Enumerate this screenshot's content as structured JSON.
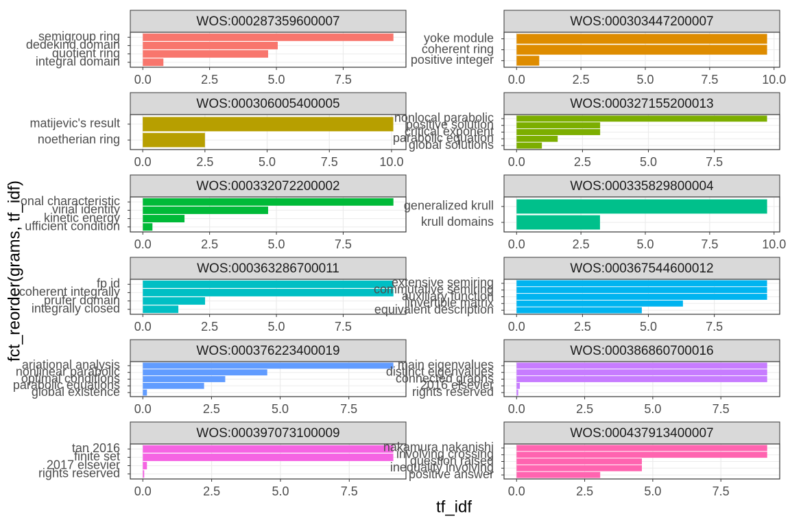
{
  "chart_data": [
    {
      "type": "bar",
      "title": "WOS:000287359600007",
      "categories": [
        "semigroup ring",
        "dedekind domain",
        "quotient ring",
        "integral domain"
      ],
      "values": [
        9.38,
        5.05,
        4.69,
        0.77
      ],
      "color": "#F8766D",
      "xlim": [
        -0.469,
        9.85
      ],
      "xticks": [
        {
          "value": 0,
          "label": "0.0"
        },
        2.5,
        {
          "value": 5,
          "label": "5.0"
        },
        7.5
      ]
    },
    {
      "type": "bar",
      "title": "WOS:000303447200007",
      "categories": [
        "yoke module",
        "coherent ring",
        "positive integer"
      ],
      "values": [
        9.73,
        9.73,
        0.88
      ],
      "color": "#DE8C00",
      "xlim": [
        -0.487,
        10.22
      ],
      "xticks": [
        {
          "value": 0,
          "label": "0.0"
        },
        2.5,
        {
          "value": 5,
          "label": "5.0"
        },
        7.5,
        {
          "value": 10,
          "label": "10.0"
        }
      ]
    },
    {
      "type": "bar",
      "title": "WOS:000306005400005",
      "categories": [
        "matijevic's result",
        "noetherian ring"
      ],
      "values": [
        10.07,
        2.5
      ],
      "color": "#B79F00",
      "xlim": [
        -0.5,
        10.58
      ],
      "xticks": [
        {
          "value": 0,
          "label": "0.0"
        },
        2.5,
        {
          "value": 5,
          "label": "5.0"
        },
        7.5,
        {
          "value": 10,
          "label": "10.0"
        }
      ]
    },
    {
      "type": "bar",
      "title": "WOS:000327155200013",
      "categories": [
        "nonlocal parabolic",
        "positive solution",
        "critical exponent",
        "parabolic equation",
        "global solutions"
      ],
      "values": [
        9.5,
        3.17,
        3.17,
        1.56,
        0.96
      ],
      "color": "#7CAE00",
      "xlim": [
        -0.475,
        9.98
      ],
      "xticks": [
        {
          "value": 0,
          "label": "0.0"
        },
        2.5,
        {
          "value": 5,
          "label": "5.0"
        },
        7.5
      ]
    },
    {
      "type": "bar",
      "title": "WOS:000332072200002",
      "categories": [
        "onal characteristic",
        "virial identity",
        "kinetic energy",
        "ufficient condition"
      ],
      "values": [
        9.38,
        4.69,
        1.56,
        0.36
      ],
      "color": "#00BA38",
      "xlim": [
        -0.469,
        9.85
      ],
      "xticks": [
        {
          "value": 0,
          "label": "0.0"
        },
        2.5,
        {
          "value": 5,
          "label": "5.0"
        },
        7.5
      ]
    },
    {
      "type": "bar",
      "title": "WOS:000335829800004",
      "categories": [
        "generalized krull",
        "krull domains"
      ],
      "values": [
        9.73,
        3.24
      ],
      "color": "#00C08B",
      "xlim": [
        -0.487,
        10.22
      ],
      "xticks": [
        {
          "value": 0,
          "label": "0.0"
        },
        2.5,
        {
          "value": 5,
          "label": "5.0"
        },
        7.5,
        {
          "value": 10,
          "label": "10.0"
        }
      ]
    },
    {
      "type": "bar",
      "title": "WOS:000363286700011",
      "categories": [
        "fp id",
        "coherent integrally",
        "prufer domain",
        "integrally closed"
      ],
      "values": [
        9.38,
        9.38,
        2.33,
        1.33
      ],
      "color": "#00BFC4",
      "xlim": [
        -0.469,
        9.85
      ],
      "xticks": [
        {
          "value": 0,
          "label": "0.0"
        },
        2.5,
        {
          "value": 5,
          "label": "5.0"
        },
        7.5
      ]
    },
    {
      "type": "bar",
      "title": "WOS:000367544600012",
      "categories": [
        "extensive semiring",
        "commutative semiring",
        "auxiliary function",
        "invertible matrix",
        "equivalent description"
      ],
      "values": [
        9.5,
        9.5,
        9.5,
        6.31,
        4.75
      ],
      "color": "#00B4F0",
      "xlim": [
        -0.475,
        9.98
      ],
      "xticks": [
        {
          "value": 0,
          "label": "0.0"
        },
        2.5,
        {
          "value": 5,
          "label": "5.0"
        },
        7.5
      ]
    },
    {
      "type": "bar",
      "title": "WOS:000376223400019",
      "categories": [
        "ariational analysis",
        "nonlinear parabolic",
        "optimal conditions",
        "parabolic equations",
        "global existence"
      ],
      "values": [
        9.12,
        4.53,
        3.0,
        2.23,
        0.15
      ],
      "color": "#619CFF",
      "xlim": [
        -0.456,
        9.58
      ],
      "xticks": [
        {
          "value": 0,
          "label": "0.0"
        },
        2.5,
        {
          "value": 5,
          "label": "5.0"
        },
        7.5
      ]
    },
    {
      "type": "bar",
      "title": "WOS:000386860700016",
      "categories": [
        "main eigenvalues",
        "distinct eigenvalues",
        "connected graphs",
        "2016 elsevier",
        "rights reserved"
      ],
      "values": [
        9.2,
        9.2,
        9.2,
        0.12,
        0.06
      ],
      "color": "#C77CFF",
      "xlim": [
        -0.46,
        9.66
      ],
      "xticks": [
        {
          "value": 0,
          "label": "0.0"
        },
        2.5,
        {
          "value": 5,
          "label": "5.0"
        },
        7.5
      ]
    },
    {
      "type": "bar",
      "title": "WOS:000397073100009",
      "categories": [
        "tan 2016",
        "finite set",
        "2017 elsevier",
        "rights reserved"
      ],
      "values": [
        9.1,
        9.1,
        0.15,
        0.05
      ],
      "color": "#F564E3",
      "xlim": [
        -0.455,
        9.56
      ],
      "xticks": [
        {
          "value": 0,
          "label": "0.0"
        },
        2.5,
        {
          "value": 5,
          "label": "5.0"
        },
        7.5
      ]
    },
    {
      "type": "bar",
      "title": "WOS:000437913400007",
      "categories": [
        "nakamura nakanishi",
        "involving crossing",
        "question raised",
        "inequality involving",
        "positive answer"
      ],
      "values": [
        9.2,
        9.2,
        4.6,
        4.6,
        3.07
      ],
      "color": "#FF64B0",
      "xlim": [
        -0.46,
        9.66
      ],
      "xticks": [
        {
          "value": 0,
          "label": "0.0"
        },
        2.5,
        {
          "value": 5,
          "label": "5.0"
        },
        7.5
      ]
    }
  ],
  "x_label": "tf_idf",
  "y_label": "fct_reorder(grams, tf_idf)"
}
